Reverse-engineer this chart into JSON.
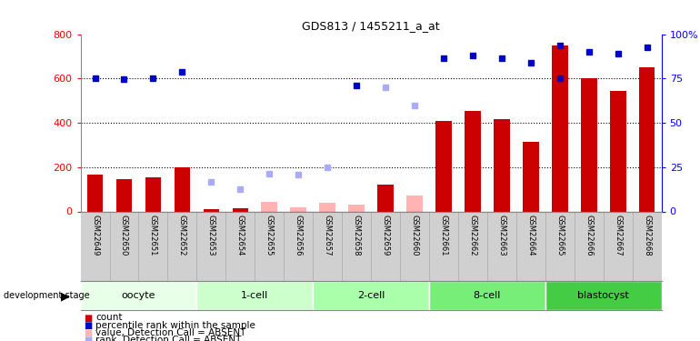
{
  "title": "GDS813 / 1455211_a_at",
  "samples": [
    "GSM22649",
    "GSM22650",
    "GSM22651",
    "GSM22652",
    "GSM22653",
    "GSM22654",
    "GSM22655",
    "GSM22656",
    "GSM22657",
    "GSM22658",
    "GSM22659",
    "GSM22660",
    "GSM22661",
    "GSM22662",
    "GSM22663",
    "GSM22664",
    "GSM22665",
    "GSM22666",
    "GSM22667",
    "GSM22668"
  ],
  "stages": [
    {
      "label": "oocyte",
      "start": 0,
      "end": 4,
      "color": "#ccffcc"
    },
    {
      "label": "1-cell",
      "start": 4,
      "end": 8,
      "color": "#aaffaa"
    },
    {
      "label": "2-cell",
      "start": 8,
      "end": 12,
      "color": "#ccffcc"
    },
    {
      "label": "8-cell",
      "start": 12,
      "end": 16,
      "color": "#66ee66"
    },
    {
      "label": "blastocyst",
      "start": 16,
      "end": 20,
      "color": "#44dd44"
    }
  ],
  "count_values": [
    165,
    145,
    152,
    200,
    10,
    15,
    null,
    null,
    null,
    null,
    120,
    null,
    410,
    455,
    415,
    315,
    750,
    600,
    545,
    650
  ],
  "count_absent": [
    false,
    false,
    false,
    false,
    false,
    false,
    false,
    false,
    false,
    false,
    false,
    false,
    false,
    false,
    false,
    false,
    false,
    false,
    false,
    false
  ],
  "value_absent": [
    null,
    null,
    null,
    null,
    null,
    null,
    45,
    20,
    40,
    30,
    null,
    70,
    null,
    null,
    null,
    null,
    null,
    null,
    null,
    null
  ],
  "rank_values": [
    600,
    595,
    600,
    630,
    null,
    null,
    null,
    null,
    null,
    570,
    null,
    null,
    null,
    null,
    null,
    null,
    600,
    null,
    null,
    null
  ],
  "rank_absent": [
    null,
    null,
    null,
    null,
    135,
    100,
    170,
    165,
    200,
    null,
    560,
    480,
    null,
    null,
    null,
    null,
    null,
    null,
    null,
    null
  ],
  "percentile_values": [
    null,
    null,
    null,
    null,
    null,
    null,
    null,
    null,
    null,
    null,
    null,
    null,
    690,
    705,
    690,
    670,
    750,
    720,
    710,
    740
  ],
  "ylim_left": [
    0,
    800
  ],
  "ylim_right": [
    0,
    100
  ],
  "yticks_left": [
    0,
    200,
    400,
    600,
    800
  ],
  "yticks_right": [
    0,
    25,
    50,
    75,
    100
  ],
  "bar_color": "#cc0000",
  "bar_absent_color": "#ffb3b3",
  "rank_color": "#0000cc",
  "rank_absent_color": "#aaaaff",
  "percentile_color": "#0000cc",
  "header_bg": "#d0d0d0",
  "dev_stage_label": "development stage"
}
